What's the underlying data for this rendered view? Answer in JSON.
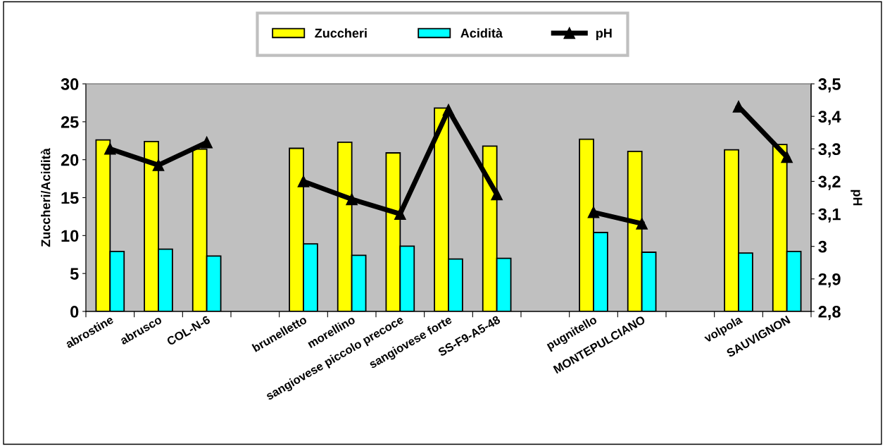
{
  "chart_data": {
    "type": "bar",
    "ylabel": "Zuccheri/Acidità",
    "y2label": "pH",
    "categories": [
      "abrostine",
      "abrusco",
      "COL-N-6",
      null,
      "brunelletto",
      "morellino",
      "sangiovese piccolo precoce",
      "sangiovese forte",
      "SS-F9-A5-48",
      null,
      "pugnitello",
      "MONTEPULCIANO",
      null,
      "volpola",
      "SAUVIGNON"
    ],
    "series": [
      {
        "name": "Zuccheri",
        "color": "#ffff00",
        "values": [
          22.6,
          22.4,
          21.4,
          null,
          21.5,
          22.3,
          20.9,
          26.8,
          21.8,
          null,
          22.7,
          21.1,
          null,
          21.3,
          22.0
        ]
      },
      {
        "name": "Acidità",
        "color": "#00ffff",
        "values": [
          7.9,
          8.2,
          7.3,
          null,
          8.9,
          7.4,
          8.6,
          6.9,
          7.0,
          null,
          10.4,
          7.8,
          null,
          7.7,
          7.9
        ]
      },
      {
        "name": "pH",
        "type": "line",
        "axis": "y2",
        "color": "#000000",
        "values": [
          3.3,
          3.25,
          3.32,
          null,
          3.2,
          3.145,
          3.1,
          3.42,
          3.16,
          null,
          3.105,
          3.07,
          null,
          3.43,
          3.275
        ]
      }
    ],
    "ylim": [
      0,
      30
    ],
    "yticks": [
      0,
      5,
      10,
      15,
      20,
      25,
      30
    ],
    "y2lim": [
      2.8,
      3.5
    ],
    "y2ticks": [
      {
        "value": 2.8,
        "label": "2,8"
      },
      {
        "value": 2.9,
        "label": "2,9"
      },
      {
        "value": 3.0,
        "label": "3"
      },
      {
        "value": 3.1,
        "label": "3,1"
      },
      {
        "value": 3.2,
        "label": "3,2"
      },
      {
        "value": 3.3,
        "label": "3,3"
      },
      {
        "value": 3.4,
        "label": "3,4"
      },
      {
        "value": 3.5,
        "label": "3,5"
      }
    ],
    "marker": "triangle",
    "line_style": "solid",
    "grid": false,
    "legend": "top"
  }
}
